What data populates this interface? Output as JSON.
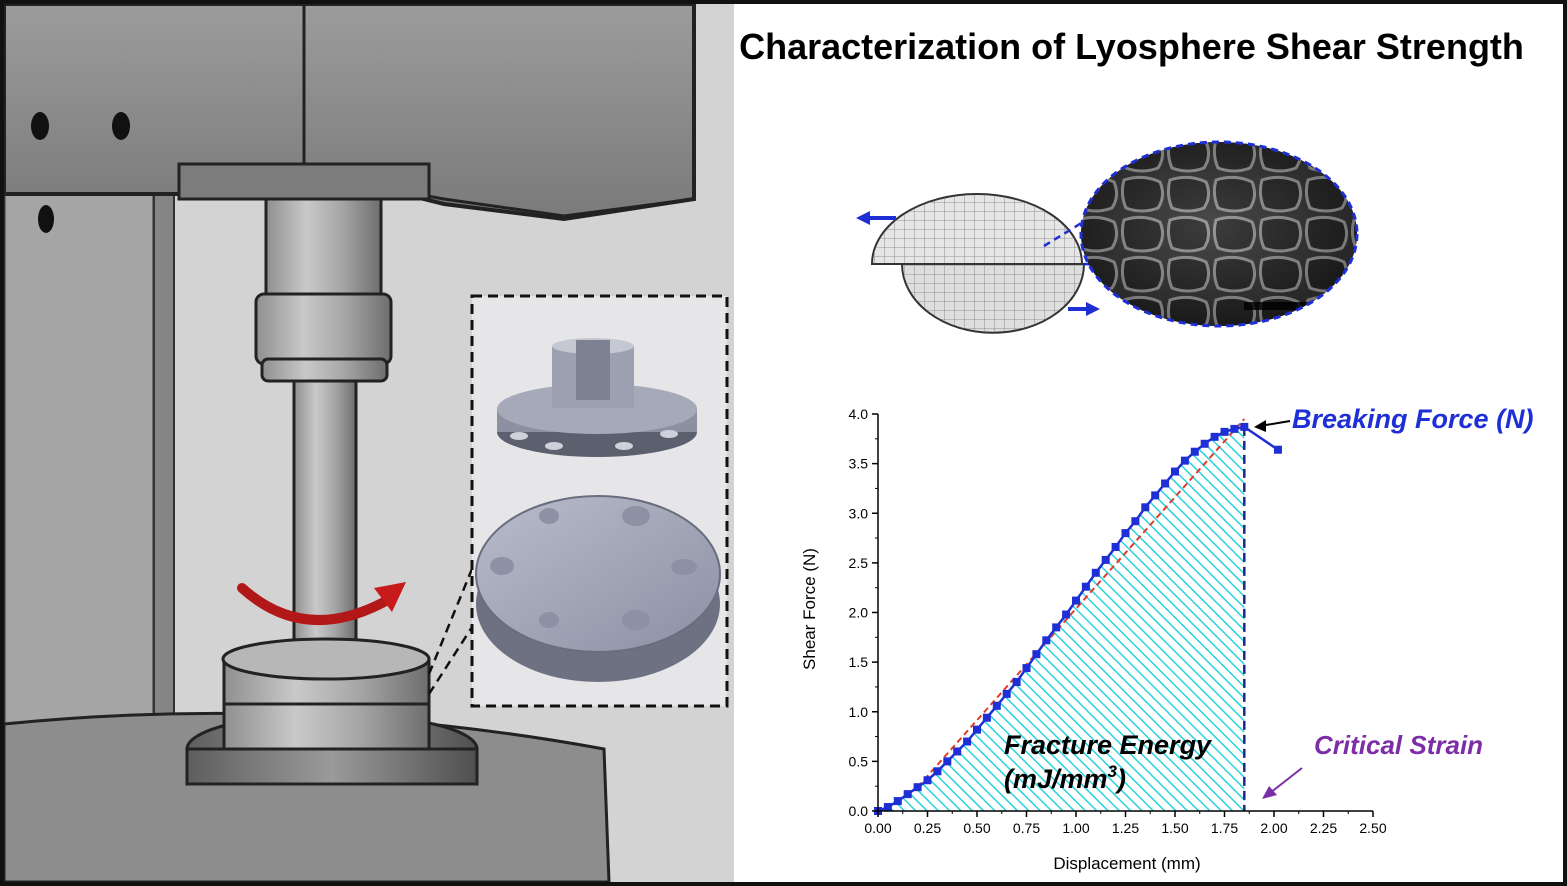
{
  "title": "Characterization of Lyosphere Shear Strength",
  "annotations": {
    "breaking_force": "Breaking Force (N)",
    "critical_strain": "Critical Strain",
    "fracture_energy_line1": "Fracture Energy",
    "fracture_energy_line2_base": "(mJ/mm",
    "fracture_energy_line2_sup": "3",
    "fracture_energy_line2_end": ")"
  },
  "colors": {
    "series": "#1f2fd6",
    "fit": "#e03a2a",
    "fill": "#27d3dd",
    "breaking_force": "#1f2fd6",
    "critical_strain": "#7b2ea8",
    "fracture_energy": "#000000",
    "rotation_arrow": "#b21818"
  },
  "icons": [
    "rotation-arrow-icon",
    "shear-arrow-left-icon",
    "shear-arrow-right-icon"
  ],
  "chart_data": {
    "type": "line",
    "xlabel": "Displacement (mm)",
    "ylabel": "Shear Force (N)",
    "xlim": [
      0,
      2.5
    ],
    "ylim": [
      0,
      4
    ],
    "x_ticks": [
      "0.00",
      "0.25",
      "0.50",
      "0.75",
      "1.00",
      "1.25",
      "1.50",
      "1.75",
      "2.00",
      "2.25",
      "2.50"
    ],
    "y_ticks": [
      "0.0",
      "0.5",
      "1.0",
      "1.5",
      "2.0",
      "2.5",
      "3.0",
      "3.5",
      "4.0"
    ],
    "grid": false,
    "series": [
      {
        "x": [
          0.0,
          0.05,
          0.1,
          0.15,
          0.2,
          0.25,
          0.3,
          0.35,
          0.4,
          0.45,
          0.5,
          0.55,
          0.6,
          0.65,
          0.7,
          0.75,
          0.8,
          0.85,
          0.9,
          0.95,
          1.0,
          1.05,
          1.1,
          1.15,
          1.2,
          1.25,
          1.3,
          1.35,
          1.4,
          1.45,
          1.5,
          1.55,
          1.6,
          1.65,
          1.7,
          1.75,
          1.8,
          1.85,
          2.02
        ],
        "y": [
          0.0,
          0.04,
          0.1,
          0.17,
          0.24,
          0.31,
          0.4,
          0.5,
          0.6,
          0.7,
          0.82,
          0.94,
          1.06,
          1.18,
          1.3,
          1.44,
          1.58,
          1.72,
          1.85,
          1.98,
          2.12,
          2.26,
          2.4,
          2.53,
          2.66,
          2.8,
          2.92,
          3.06,
          3.18,
          3.3,
          3.42,
          3.53,
          3.62,
          3.7,
          3.77,
          3.82,
          3.85,
          3.87,
          3.64
        ]
      }
    ],
    "fit_line": {
      "x": [
        0.2,
        1.85
      ],
      "y": [
        0.24,
        3.95
      ]
    },
    "critical_x": 1.85
  }
}
